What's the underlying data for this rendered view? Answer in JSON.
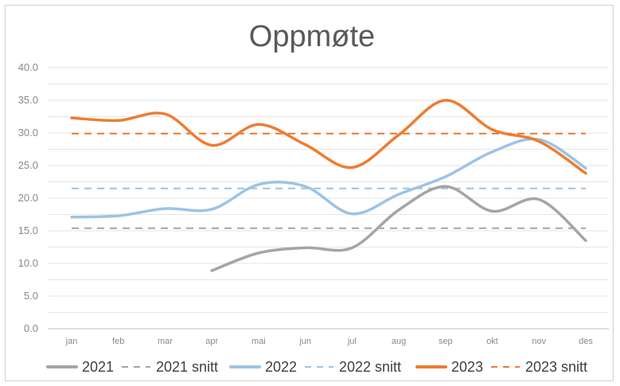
{
  "chart_data": {
    "type": "line",
    "title": "Oppmøte",
    "xlabel": "",
    "ylabel": "",
    "ylim": [
      0,
      40
    ],
    "ytick_labels": [
      "0.0",
      "5.0",
      "10.0",
      "15.0",
      "20.0",
      "25.0",
      "30.0",
      "35.0",
      "40.0"
    ],
    "categories": [
      "jan",
      "feb",
      "mar",
      "apr",
      "mai",
      "jun",
      "jul",
      "aug",
      "sep",
      "okt",
      "nov",
      "des"
    ],
    "grid": true,
    "legend_position": "bottom",
    "series": [
      {
        "name": "2021",
        "style": "solid",
        "color": "#a5a5a5",
        "values": [
          null,
          null,
          null,
          8.9,
          11.6,
          12.4,
          12.4,
          18.2,
          21.8,
          18.0,
          19.8,
          13.5
        ]
      },
      {
        "name": "2021 snitt",
        "style": "dashed",
        "color": "#a5a5a5",
        "values": [
          15.4,
          15.4,
          15.4,
          15.4,
          15.4,
          15.4,
          15.4,
          15.4,
          15.4,
          15.4,
          15.4,
          15.4
        ]
      },
      {
        "name": "2022",
        "style": "solid",
        "color": "#9dc3e6",
        "values": [
          17.1,
          17.3,
          18.4,
          18.3,
          22.1,
          21.8,
          17.6,
          20.6,
          23.3,
          27.1,
          29.0,
          24.6
        ]
      },
      {
        "name": "2022 snitt",
        "style": "dashed",
        "color": "#9dc3e6",
        "values": [
          21.5,
          21.5,
          21.5,
          21.5,
          21.5,
          21.5,
          21.5,
          21.5,
          21.5,
          21.5,
          21.5,
          21.5
        ]
      },
      {
        "name": "2023",
        "style": "solid",
        "color": "#ed7d31",
        "values": [
          32.3,
          31.9,
          32.9,
          28.1,
          31.3,
          28.2,
          24.7,
          29.7,
          35.0,
          30.5,
          28.7,
          23.8
        ]
      },
      {
        "name": "2023 snitt",
        "style": "dashed",
        "color": "#ed7d31",
        "values": [
          29.9,
          29.9,
          29.9,
          29.9,
          29.9,
          29.9,
          29.9,
          29.9,
          29.9,
          29.9,
          29.9,
          29.9
        ]
      }
    ]
  }
}
